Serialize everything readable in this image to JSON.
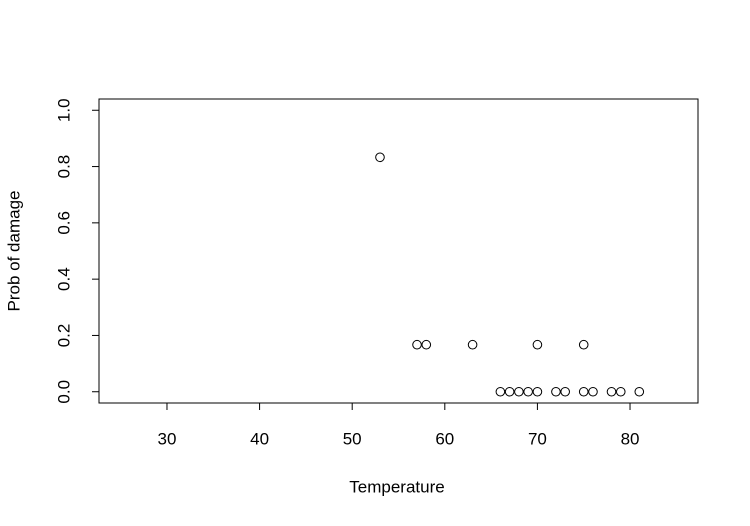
{
  "chart_data": {
    "type": "scatter",
    "x_label": "Temperature",
    "y_label": "Prob of damage",
    "x": [
      53,
      57,
      58,
      63,
      70,
      75,
      66,
      67,
      68,
      69,
      70,
      72,
      73,
      75,
      76,
      78,
      79,
      81
    ],
    "values": [
      0.833,
      0.167,
      0.167,
      0.167,
      0.167,
      0.167,
      0,
      0,
      0,
      0,
      0,
      0,
      0,
      0,
      0,
      0,
      0,
      0
    ],
    "color": "#000000",
    "xlim": [
      22.66,
      87.34
    ],
    "ylim": [
      -0.04,
      1.04
    ],
    "xticks": [
      30,
      40,
      50,
      60,
      70,
      80
    ],
    "yticks": [
      {
        "value": 0,
        "label": "0.0"
      },
      0.2,
      0.4,
      0.6,
      0.8,
      {
        "value": 1,
        "label": "1.0"
      }
    ]
  }
}
